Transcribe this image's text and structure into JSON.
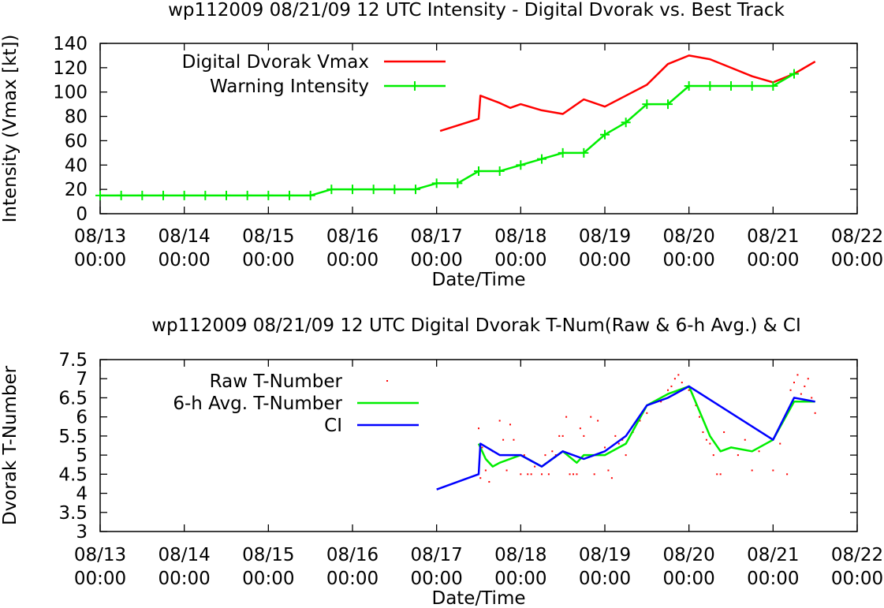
{
  "chart_data": [
    {
      "type": "line",
      "title": "wp112009 08/21/09  12 UTC Intensity - Digital Dvorak vs. Best Track",
      "xlabel": "Date/Time",
      "ylabel": "Intensity (Vmax [kt])",
      "xlim": [
        "08/13 00:00",
        "08/22 00:00"
      ],
      "ylim": [
        0,
        140
      ],
      "x_ticks": [
        {
          "date": "08/13",
          "time": "00:00"
        },
        {
          "date": "08/14",
          "time": "00:00"
        },
        {
          "date": "08/15",
          "time": "00:00"
        },
        {
          "date": "08/16",
          "time": "00:00"
        },
        {
          "date": "08/17",
          "time": "00:00"
        },
        {
          "date": "08/18",
          "time": "00:00"
        },
        {
          "date": "08/19",
          "time": "00:00"
        },
        {
          "date": "08/20",
          "time": "00:00"
        },
        {
          "date": "08/21",
          "time": "00:00"
        },
        {
          "date": "08/22",
          "time": "00:00"
        }
      ],
      "y_ticks": [
        "0",
        "20",
        "40",
        "60",
        "80",
        "100",
        "120",
        "140"
      ],
      "grid": false,
      "legend": "top-left",
      "series": [
        {
          "name": "Digital Dvorak Vmax",
          "color": "#ff0000",
          "style": "line",
          "points": [
            [
              "08/17 01:00",
              68
            ],
            [
              "08/17 12:00",
              78
            ],
            [
              "08/17 12:30",
              97
            ],
            [
              "08/17 18:00",
              91
            ],
            [
              "08/17 21:00",
              87
            ],
            [
              "08/18 00:00",
              90
            ],
            [
              "08/18 06:00",
              85
            ],
            [
              "08/18 12:00",
              82
            ],
            [
              "08/18 18:00",
              94
            ],
            [
              "08/19 00:00",
              88
            ],
            [
              "08/19 06:00",
              97
            ],
            [
              "08/19 12:00",
              106
            ],
            [
              "08/19 18:00",
              123
            ],
            [
              "08/20 00:00",
              130
            ],
            [
              "08/20 06:00",
              127
            ],
            [
              "08/20 12:00",
              120
            ],
            [
              "08/20 18:00",
              113
            ],
            [
              "08/21 00:00",
              108
            ],
            [
              "08/21 06:00",
              115
            ],
            [
              "08/21 12:00",
              125
            ]
          ]
        },
        {
          "name": "Warning Intensity",
          "color": "#00ee00",
          "style": "linespoints",
          "points": [
            [
              "08/13 00:00",
              15
            ],
            [
              "08/13 06:00",
              15
            ],
            [
              "08/13 12:00",
              15
            ],
            [
              "08/13 18:00",
              15
            ],
            [
              "08/14 00:00",
              15
            ],
            [
              "08/14 06:00",
              15
            ],
            [
              "08/14 12:00",
              15
            ],
            [
              "08/14 18:00",
              15
            ],
            [
              "08/15 00:00",
              15
            ],
            [
              "08/15 06:00",
              15
            ],
            [
              "08/15 12:00",
              15
            ],
            [
              "08/15 18:00",
              20
            ],
            [
              "08/16 00:00",
              20
            ],
            [
              "08/16 06:00",
              20
            ],
            [
              "08/16 12:00",
              20
            ],
            [
              "08/16 18:00",
              20
            ],
            [
              "08/17 00:00",
              25
            ],
            [
              "08/17 06:00",
              25
            ],
            [
              "08/17 12:00",
              35
            ],
            [
              "08/17 18:00",
              35
            ],
            [
              "08/18 00:00",
              40
            ],
            [
              "08/18 06:00",
              45
            ],
            [
              "08/18 12:00",
              50
            ],
            [
              "08/18 18:00",
              50
            ],
            [
              "08/19 00:00",
              65
            ],
            [
              "08/19 06:00",
              75
            ],
            [
              "08/19 12:00",
              90
            ],
            [
              "08/19 18:00",
              90
            ],
            [
              "08/20 00:00",
              105
            ],
            [
              "08/20 06:00",
              105
            ],
            [
              "08/20 12:00",
              105
            ],
            [
              "08/20 18:00",
              105
            ],
            [
              "08/21 00:00",
              105
            ],
            [
              "08/21 06:00",
              115
            ]
          ]
        }
      ]
    },
    {
      "type": "line",
      "title": "wp112009 08/21/09  12 UTC Digital Dvorak T-Num(Raw & 6-h Avg.) & CI",
      "xlabel": "Date/Time",
      "ylabel": "Dvorak T-Number",
      "xlim": [
        "08/13 00:00",
        "08/22 00:00"
      ],
      "ylim": [
        3,
        7.5
      ],
      "x_ticks": [
        {
          "date": "08/13",
          "time": "00:00"
        },
        {
          "date": "08/14",
          "time": "00:00"
        },
        {
          "date": "08/15",
          "time": "00:00"
        },
        {
          "date": "08/16",
          "time": "00:00"
        },
        {
          "date": "08/17",
          "time": "00:00"
        },
        {
          "date": "08/18",
          "time": "00:00"
        },
        {
          "date": "08/19",
          "time": "00:00"
        },
        {
          "date": "08/20",
          "time": "00:00"
        },
        {
          "date": "08/21",
          "time": "00:00"
        },
        {
          "date": "08/22",
          "time": "00:00"
        }
      ],
      "y_ticks": [
        "3",
        "3.5",
        "4",
        "4.5",
        "5",
        "5.5",
        "6",
        "6.5",
        "7",
        "7.5"
      ],
      "grid": false,
      "legend": "top-left",
      "series": [
        {
          "name": "Raw T-Number",
          "color": "#ff0000",
          "style": "dots",
          "points": [
            [
              "08/17 12:00",
              5.7
            ],
            [
              "08/17 12:30",
              4.4
            ],
            [
              "08/17 13:00",
              5.2
            ],
            [
              "08/17 14:00",
              4.6
            ],
            [
              "08/17 15:00",
              4.3
            ],
            [
              "08/17 16:00",
              5.1
            ],
            [
              "08/17 18:00",
              5.9
            ],
            [
              "08/17 19:00",
              5.4
            ],
            [
              "08/17 20:00",
              4.6
            ],
            [
              "08/17 21:00",
              5.8
            ],
            [
              "08/17 22:00",
              5.4
            ],
            [
              "08/18 00:00",
              4.5
            ],
            [
              "08/18 01:00",
              5.0
            ],
            [
              "08/18 02:00",
              4.5
            ],
            [
              "08/18 03:00",
              4.5
            ],
            [
              "08/18 04:00",
              4.7
            ],
            [
              "08/18 06:00",
              4.5
            ],
            [
              "08/18 07:00",
              5.0
            ],
            [
              "08/18 08:00",
              4.5
            ],
            [
              "08/18 09:00",
              5.1
            ],
            [
              "08/18 10:00",
              5.0
            ],
            [
              "08/18 11:00",
              5.5
            ],
            [
              "08/18 12:00",
              5.5
            ],
            [
              "08/18 13:00",
              6.0
            ],
            [
              "08/18 14:00",
              4.5
            ],
            [
              "08/18 15:00",
              4.5
            ],
            [
              "08/18 16:00",
              4.5
            ],
            [
              "08/18 17:00",
              5.7
            ],
            [
              "08/18 18:00",
              5.5
            ],
            [
              "08/18 19:00",
              5.0
            ],
            [
              "08/18 20:00",
              6.0
            ],
            [
              "08/18 21:00",
              4.5
            ],
            [
              "08/18 22:00",
              5.9
            ],
            [
              "08/19 00:00",
              5.2
            ],
            [
              "08/19 01:00",
              4.6
            ],
            [
              "08/19 02:00",
              4.4
            ],
            [
              "08/19 03:00",
              5.5
            ],
            [
              "08/19 04:00",
              5.3
            ],
            [
              "08/19 05:00",
              5.4
            ],
            [
              "08/19 06:00",
              5.0
            ],
            [
              "08/19 08:00",
              5.6
            ],
            [
              "08/19 10:00",
              5.9
            ],
            [
              "08/19 12:00",
              6.1
            ],
            [
              "08/19 14:00",
              6.4
            ],
            [
              "08/19 16:00",
              6.4
            ],
            [
              "08/19 18:00",
              6.7
            ],
            [
              "08/19 19:00",
              6.8
            ],
            [
              "08/19 20:00",
              7.0
            ],
            [
              "08/19 21:00",
              7.1
            ],
            [
              "08/19 22:00",
              6.9
            ],
            [
              "08/20 00:00",
              6.7
            ],
            [
              "08/20 01:00",
              6.6
            ],
            [
              "08/20 02:00",
              6.3
            ],
            [
              "08/20 03:00",
              6.0
            ],
            [
              "08/20 04:00",
              5.6
            ],
            [
              "08/20 05:00",
              5.4
            ],
            [
              "08/20 06:00",
              5.3
            ],
            [
              "08/20 07:00",
              5.0
            ],
            [
              "08/20 08:00",
              4.5
            ],
            [
              "08/20 09:00",
              4.5
            ],
            [
              "08/20 10:00",
              5.6
            ],
            [
              "08/20 12:00",
              5.2
            ],
            [
              "08/20 14:00",
              5.0
            ],
            [
              "08/20 16:00",
              5.4
            ],
            [
              "08/20 18:00",
              4.6
            ],
            [
              "08/20 20:00",
              5.1
            ],
            [
              "08/21 00:00",
              4.6
            ],
            [
              "08/21 02:00",
              5.3
            ],
            [
              "08/21 04:00",
              4.5
            ],
            [
              "08/21 05:00",
              6.7
            ],
            [
              "08/21 06:00",
              6.9
            ],
            [
              "08/21 07:00",
              7.1
            ],
            [
              "08/21 08:00",
              6.6
            ],
            [
              "08/21 09:00",
              6.8
            ],
            [
              "08/21 10:00",
              7.0
            ],
            [
              "08/21 11:00",
              6.5
            ],
            [
              "08/21 12:00",
              6.1
            ]
          ]
        },
        {
          "name": "6-h Avg. T-Number",
          "color": "#00ee00",
          "style": "line",
          "points": [
            [
              "08/17 12:00",
              5.3
            ],
            [
              "08/17 14:00",
              4.9
            ],
            [
              "08/17 16:00",
              4.7
            ],
            [
              "08/17 18:00",
              4.8
            ],
            [
              "08/18 00:00",
              5.0
            ],
            [
              "08/18 06:00",
              4.7
            ],
            [
              "08/18 12:00",
              5.1
            ],
            [
              "08/18 16:00",
              4.8
            ],
            [
              "08/18 18:00",
              5.0
            ],
            [
              "08/19 00:00",
              5.0
            ],
            [
              "08/19 06:00",
              5.3
            ],
            [
              "08/19 12:00",
              6.3
            ],
            [
              "08/19 18:00",
              6.6
            ],
            [
              "08/20 00:00",
              6.8
            ],
            [
              "08/20 06:00",
              5.5
            ],
            [
              "08/20 09:00",
              5.1
            ],
            [
              "08/20 12:00",
              5.2
            ],
            [
              "08/20 18:00",
              5.1
            ],
            [
              "08/21 00:00",
              5.4
            ],
            [
              "08/21 06:00",
              6.4
            ],
            [
              "08/21 12:00",
              6.4
            ]
          ]
        },
        {
          "name": "CI",
          "color": "#0000ff",
          "style": "line",
          "points": [
            [
              "08/17 00:00",
              4.1
            ],
            [
              "08/17 12:00",
              4.5
            ],
            [
              "08/17 12:30",
              5.3
            ],
            [
              "08/17 18:00",
              5.0
            ],
            [
              "08/18 00:00",
              5.0
            ],
            [
              "08/18 06:00",
              4.7
            ],
            [
              "08/18 12:00",
              5.1
            ],
            [
              "08/18 18:00",
              4.9
            ],
            [
              "08/19 00:00",
              5.1
            ],
            [
              "08/19 06:00",
              5.5
            ],
            [
              "08/19 12:00",
              6.3
            ],
            [
              "08/19 18:00",
              6.5
            ],
            [
              "08/20 00:00",
              6.8
            ],
            [
              "08/21 00:00",
              5.4
            ],
            [
              "08/21 06:00",
              6.5
            ],
            [
              "08/21 12:00",
              6.4
            ]
          ]
        }
      ]
    }
  ]
}
